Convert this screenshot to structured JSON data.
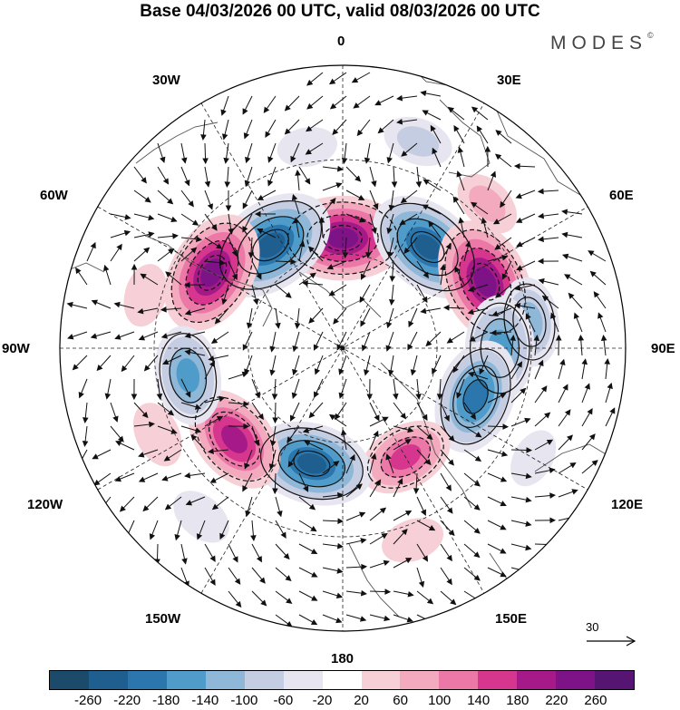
{
  "title": "Base 04/03/2026 00 UTC, valid 08/03/2026 00 UTC",
  "brand": "MODES",
  "brand_mark": "©",
  "longitude_labels": {
    "top": "0",
    "top_left": "30W",
    "top_right": "30E",
    "upper_left": "60W",
    "upper_right": "60E",
    "left": "90W",
    "right": "90E",
    "lower_left": "120W",
    "lower_right": "120E",
    "bottom_left": "150W",
    "bottom_right": "150E",
    "bottom": "180"
  },
  "reference_vector": {
    "label": "30"
  },
  "colorbar": {
    "ticks": [
      "-260",
      "-220",
      "-180",
      "-140",
      "-100",
      "-60",
      "-20",
      "20",
      "60",
      "100",
      "140",
      "180",
      "220",
      "260"
    ],
    "colors": [
      "#1b4a6b",
      "#1f5f8f",
      "#2b77ad",
      "#4f9ccb",
      "#8fb7d8",
      "#c4cde2",
      "#e6e5f0",
      "#ffffff",
      "#f6d0d6",
      "#f3a9be",
      "#eb78a7",
      "#d6368e",
      "#a51a88",
      "#7e1388",
      "#561473"
    ]
  },
  "features": {
    "anomalies": [
      {
        "lon": 0,
        "lat": 55,
        "value": 240
      },
      {
        "lon": 35,
        "lat": 50,
        "value": -250
      },
      {
        "lon": 60,
        "lat": 42,
        "value": 230
      },
      {
        "lon": -40,
        "lat": 48,
        "value": -230
      },
      {
        "lon": -65,
        "lat": 40,
        "value": 240
      },
      {
        "lon": -82,
        "lat": 30,
        "value": -120
      },
      {
        "lon": -90,
        "lat": 40,
        "value": -170
      },
      {
        "lon": -110,
        "lat": 45,
        "value": -200
      },
      {
        "lon": -150,
        "lat": 50,
        "value": 140
      },
      {
        "lon": 165,
        "lat": 52,
        "value": -220
      },
      {
        "lon": 130,
        "lat": 45,
        "value": 190
      },
      {
        "lon": 100,
        "lat": 40,
        "value": -150
      },
      {
        "lon": -160,
        "lat": 25,
        "value": 40
      },
      {
        "lon": 140,
        "lat": 20,
        "value": -40
      },
      {
        "lon": -20,
        "lat": 20,
        "value": -60
      },
      {
        "lon": 10,
        "lat": 25,
        "value": -30
      },
      {
        "lon": -120,
        "lat": 20,
        "value": -30
      },
      {
        "lon": 115,
        "lat": 25,
        "value": 50
      },
      {
        "lon": -45,
        "lat": 25,
        "value": 60
      },
      {
        "lon": 75,
        "lat": 25,
        "value": 40
      }
    ]
  }
}
